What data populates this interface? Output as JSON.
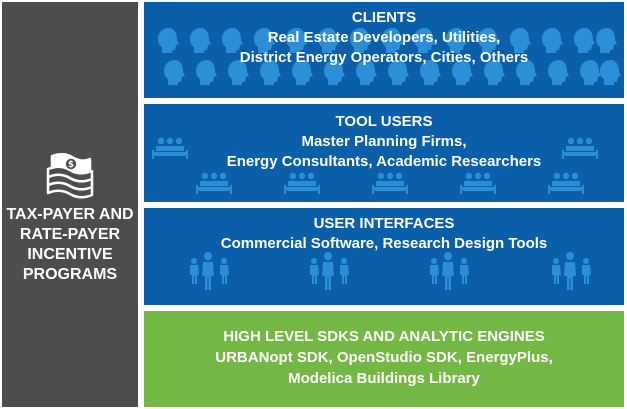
{
  "left_column": {
    "icon": "money-stack-icon",
    "label_lines": [
      "TAX-PAYER AND",
      "RATE-PAYER",
      "INCENTIVE",
      "PROGRAMS"
    ]
  },
  "panels": [
    {
      "id": "clients",
      "icon": "head-silhouette-icon",
      "color": "#0b5fa8",
      "lines": [
        "CLIENTS",
        "Real Estate Developers, Utilities,",
        "District Energy Operators, Cities, Others"
      ]
    },
    {
      "id": "tool_users",
      "icon": "meeting-table-icon",
      "color": "#0b5fa8",
      "lines": [
        "TOOL USERS",
        "Master Planning Firms,",
        "Energy Consultants, Academic Researchers"
      ]
    },
    {
      "id": "user_interfaces",
      "icon": "people-group-icon",
      "color": "#0b5fa8",
      "lines": [
        "USER INTERFACES",
        "Commercial Software, Research Design Tools"
      ]
    },
    {
      "id": "sdks",
      "color": "#73b744",
      "lines": [
        "HIGH LEVEL SDKS AND ANALYTIC ENGINES",
        "URBANopt SDK, OpenStudio SDK, EnergyPlus,",
        "Modelica Buildings Library"
      ]
    }
  ]
}
